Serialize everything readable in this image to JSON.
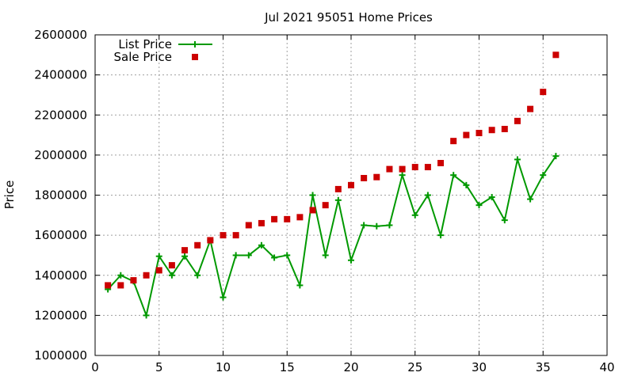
{
  "chart_data": {
    "type": "line",
    "title": "Jul 2021 95051 Home Prices",
    "xlabel": "",
    "ylabel": "Price",
    "xlim": [
      0,
      40
    ],
    "ylim": [
      1000000,
      2600000
    ],
    "xticks": [
      0,
      5,
      10,
      15,
      20,
      25,
      30,
      35,
      40
    ],
    "yticks": [
      1000000,
      1200000,
      1400000,
      1600000,
      1800000,
      2000000,
      2200000,
      2400000,
      2600000
    ],
    "grid": true,
    "legend_position": "top-left",
    "series": [
      {
        "name": "List Price",
        "style": "line-plus",
        "color": "#009900",
        "x": [
          1,
          2,
          3,
          4,
          5,
          6,
          7,
          8,
          9,
          10,
          11,
          12,
          13,
          14,
          15,
          16,
          17,
          18,
          19,
          20,
          21,
          22,
          23,
          24,
          25,
          26,
          27,
          28,
          29,
          30,
          31,
          32,
          33,
          34,
          35,
          36
        ],
        "y": [
          1330000,
          1400000,
          1370000,
          1200000,
          1495000,
          1400000,
          1495000,
          1400000,
          1575000,
          1290000,
          1500000,
          1500000,
          1550000,
          1488000,
          1500000,
          1350000,
          1800000,
          1500000,
          1775000,
          1475000,
          1650000,
          1645000,
          1650000,
          1900000,
          1700000,
          1800000,
          1600000,
          1900000,
          1850000,
          1750000,
          1790000,
          1675000,
          1978000,
          1780000,
          1900000,
          1995000
        ]
      },
      {
        "name": "Sale Price",
        "style": "square-points",
        "color": "#cc0000",
        "x": [
          1,
          2,
          3,
          4,
          5,
          6,
          7,
          8,
          9,
          10,
          11,
          12,
          13,
          14,
          15,
          16,
          17,
          18,
          19,
          20,
          21,
          22,
          23,
          24,
          25,
          26,
          27,
          28,
          29,
          30,
          31,
          32,
          33,
          34,
          35,
          36
        ],
        "y": [
          1350000,
          1350000,
          1375000,
          1400000,
          1425000,
          1450000,
          1525000,
          1550000,
          1575000,
          1600000,
          1600000,
          1650000,
          1660000,
          1680000,
          1680000,
          1690000,
          1725000,
          1750000,
          1830000,
          1850000,
          1885000,
          1890000,
          1930000,
          1930000,
          1940000,
          1940000,
          1960000,
          2070000,
          2100000,
          2110000,
          2125000,
          2130000,
          2170000,
          2230000,
          2315000,
          2500000
        ]
      }
    ]
  }
}
